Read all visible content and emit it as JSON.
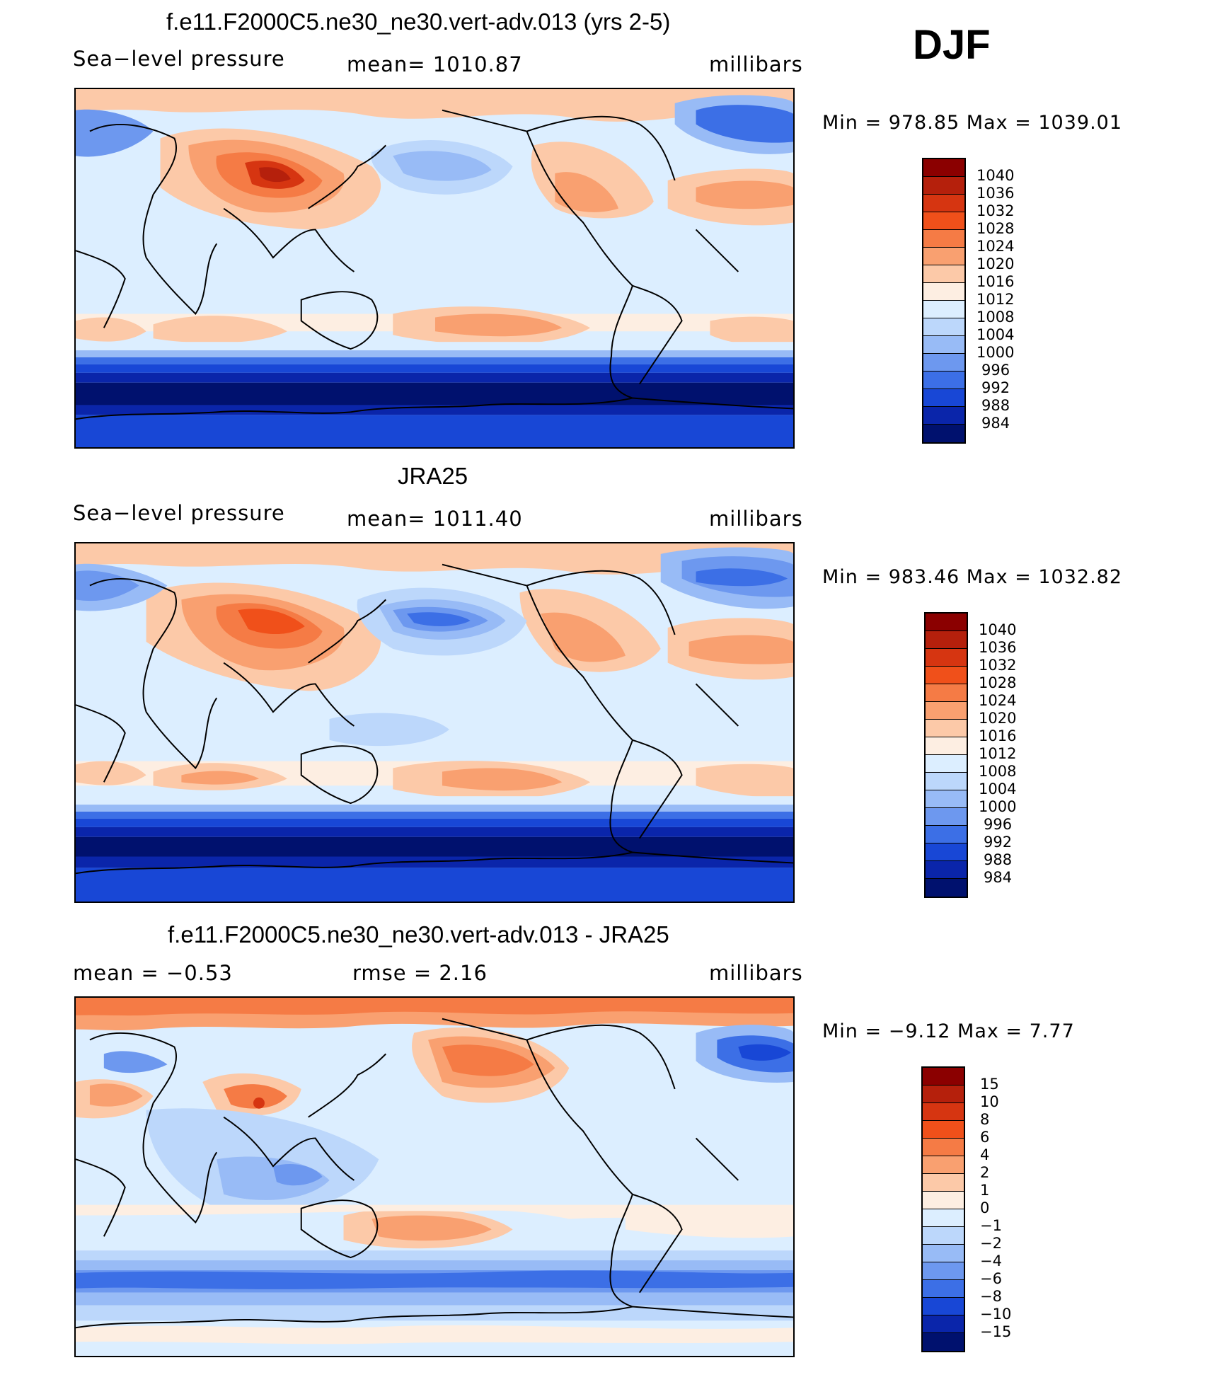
{
  "season": "DJF",
  "panels": [
    {
      "title": "f.e11.F2000C5.ne30_ne30.vert-adv.013 (yrs 2-5)",
      "left": "Sea−level pressure",
      "center": "mean=  1010.87",
      "right": "millibars",
      "stats": "Min  =  978.85  Max  =  1039.01",
      "colorbar_labels": [
        "1040",
        "1036",
        "1032",
        "1028",
        "1024",
        "1020",
        "1016",
        "1012",
        "1008",
        "1004",
        "1000",
        "996",
        "992",
        "988",
        "984"
      ]
    },
    {
      "title": "JRA25",
      "left": "Sea−level pressure",
      "center": "mean=  1011.40",
      "right": "millibars",
      "stats": "Min  =  983.46  Max  =  1032.82",
      "colorbar_labels": [
        "1040",
        "1036",
        "1032",
        "1028",
        "1024",
        "1020",
        "1016",
        "1012",
        "1008",
        "1004",
        "1000",
        "996",
        "992",
        "988",
        "984"
      ]
    },
    {
      "title": "f.e11.F2000C5.ne30_ne30.vert-adv.013 - JRA25",
      "left": "mean  =    −0.53",
      "center": "rmse  =     2.16",
      "right": "millibars",
      "stats": "Min  =    −9.12  Max  =      7.77",
      "colorbar_labels": [
        "15",
        "10",
        "8",
        "6",
        "4",
        "2",
        "1",
        "0",
        "−1",
        "−2",
        "−4",
        "−6",
        "−8",
        "−10",
        "−15"
      ]
    }
  ],
  "colors": {
    "absolute": [
      "#8b0000",
      "#b5200c",
      "#d63511",
      "#f0501a",
      "#f57b45",
      "#f9a070",
      "#fcc9a8",
      "#fdeee2",
      "#dceeff",
      "#bcd7fb",
      "#98bbf6",
      "#6d98ef",
      "#3c6fe6",
      "#1847d6",
      "#0a25aa",
      "#00116e"
    ],
    "difference": [
      "#8b0000",
      "#b5200c",
      "#d63511",
      "#f0501a",
      "#f57b45",
      "#f9a070",
      "#fcc9a8",
      "#fdeee2",
      "#dceeff",
      "#bcd7fb",
      "#98bbf6",
      "#6d98ef",
      "#3c6fe6",
      "#1847d6",
      "#0a25aa",
      "#00116e"
    ]
  }
}
